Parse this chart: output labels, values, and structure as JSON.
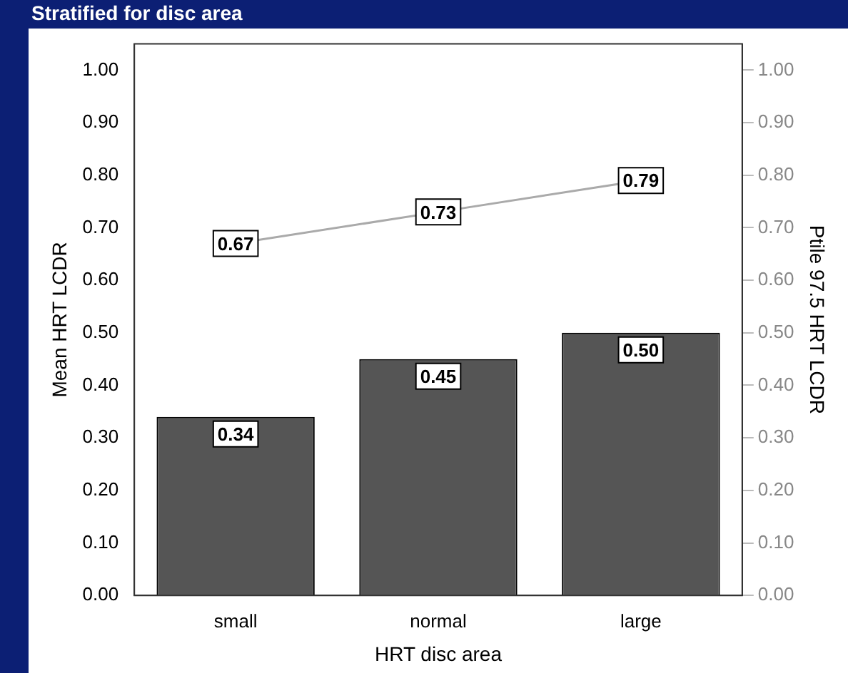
{
  "chart_data": {
    "type": "bar",
    "title": "Stratified for disc area",
    "xlabel": "HRT disc area",
    "ylabel": "Mean HRT LCDR",
    "y2label": "Ptile 97.5 HRT LCDR",
    "categories": [
      "small",
      "normal",
      "large"
    ],
    "series": [
      {
        "color": "#555555",
        "values": [
          0.34,
          0.45,
          0.5
        ],
        "value_labels": [
          "0.34",
          "0.45",
          "0.50"
        ]
      },
      {
        "type": "line",
        "axis": "y2",
        "marker": "square",
        "color": "#aaaaaa",
        "values": [
          0.67,
          0.73,
          0.79
        ],
        "value_labels": [
          "0.67",
          "0.73",
          "0.79"
        ]
      }
    ],
    "ylim": [
      0,
      1.05
    ],
    "yticks": [
      {
        "value": 0,
        "label": "0.00"
      },
      {
        "value": 0.1,
        "label": "0.10"
      },
      {
        "value": 0.2,
        "label": "0.20"
      },
      {
        "value": 0.3,
        "label": "0.30"
      },
      {
        "value": 0.4,
        "label": "0.40"
      },
      {
        "value": 0.5,
        "label": "0.50"
      },
      {
        "value": 0.6,
        "label": "0.60"
      },
      {
        "value": 0.7,
        "label": "0.70"
      },
      {
        "value": 0.8,
        "label": "0.80"
      },
      {
        "value": 0.9,
        "label": "0.90"
      },
      {
        "value": 1,
        "label": "1.00"
      }
    ],
    "y2lim": [
      0,
      1.05
    ],
    "y2ticks": [
      {
        "value": 0,
        "label": "0.00"
      },
      {
        "value": 0.1,
        "label": "0.10"
      },
      {
        "value": 0.2,
        "label": "0.20"
      },
      {
        "value": 0.3,
        "label": "0.30"
      },
      {
        "value": 0.4,
        "label": "0.40"
      },
      {
        "value": 0.5,
        "label": "0.50"
      },
      {
        "value": 0.6,
        "label": "0.60"
      },
      {
        "value": 0.7,
        "label": "0.70"
      },
      {
        "value": 0.8,
        "label": "0.80"
      },
      {
        "value": 0.9,
        "label": "0.90"
      },
      {
        "value": 1,
        "label": "1.00"
      }
    ],
    "legend": false,
    "grid": false,
    "line_style": "solid"
  }
}
